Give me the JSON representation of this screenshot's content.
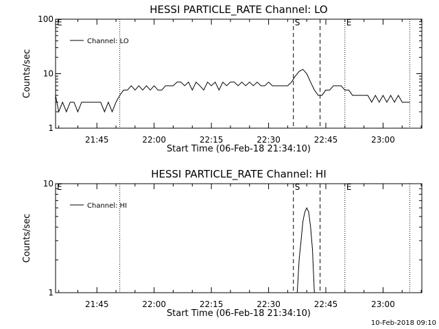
{
  "footer": {
    "timestamp": "10-Feb-2018 09:10"
  },
  "chart_data": [
    {
      "type": "line",
      "title": "HESSI PARTICLE_RATE Channel: LO",
      "xlabel": "Start Time (06-Feb-18 21:34:10)",
      "ylabel": "Counts/sec",
      "yscale": "log",
      "ylim": [
        1,
        100
      ],
      "xlim": [
        "21:34:10",
        "23:10:10"
      ],
      "x_ticks": [
        "21:45",
        "22:00",
        "22:15",
        "22:30",
        "22:45",
        "23:00"
      ],
      "y_ticks": [
        "1",
        "10",
        "100"
      ],
      "grid": false,
      "legend": {
        "position": "top-left",
        "entries": [
          "Channel: LO"
        ]
      },
      "markers": [
        {
          "label": "E",
          "time": "21:34:10",
          "style": "dotted"
        },
        {
          "label": "",
          "time": "21:51:00",
          "style": "dotted"
        },
        {
          "label": "S",
          "time": "22:36:30",
          "style": "dashed"
        },
        {
          "label": "",
          "time": "22:43:30",
          "style": "dashed"
        },
        {
          "label": "E",
          "time": "22:50:00",
          "style": "dotted"
        },
        {
          "label": "",
          "time": "23:07:00",
          "style": "dotted"
        }
      ],
      "series": [
        {
          "name": "Channel: LO",
          "x": [
            "21:34:10",
            "21:35:00",
            "21:36:00",
            "21:37:00",
            "21:38:00",
            "21:39:00",
            "21:40:00",
            "21:41:00",
            "21:42:00",
            "21:43:00",
            "21:44:00",
            "21:45:00",
            "21:46:00",
            "21:47:00",
            "21:48:00",
            "21:49:00",
            "21:50:00",
            "21:51:00",
            "21:52:00",
            "21:53:00",
            "21:54:00",
            "21:55:00",
            "21:56:00",
            "21:57:00",
            "21:58:00",
            "21:59:00",
            "22:00:00",
            "22:01:00",
            "22:02:00",
            "22:03:00",
            "22:04:00",
            "22:05:00",
            "22:06:00",
            "22:07:00",
            "22:08:00",
            "22:09:00",
            "22:10:00",
            "22:11:00",
            "22:12:00",
            "22:13:00",
            "22:14:00",
            "22:15:00",
            "22:16:00",
            "22:17:00",
            "22:18:00",
            "22:19:00",
            "22:20:00",
            "22:21:00",
            "22:22:00",
            "22:23:00",
            "22:24:00",
            "22:25:00",
            "22:26:00",
            "22:27:00",
            "22:28:00",
            "22:29:00",
            "22:30:00",
            "22:31:00",
            "22:32:00",
            "22:33:00",
            "22:34:00",
            "22:35:00",
            "22:36:00",
            "22:37:00",
            "22:38:00",
            "22:39:00",
            "22:40:00",
            "22:41:00",
            "22:42:00",
            "22:43:00",
            "22:44:00",
            "22:45:00",
            "22:46:00",
            "22:47:00",
            "22:48:00",
            "22:49:00",
            "22:50:00",
            "22:51:00",
            "22:52:00",
            "22:53:00",
            "22:54:00",
            "22:55:00",
            "22:56:00",
            "22:57:00",
            "22:58:00",
            "22:59:00",
            "23:00:00",
            "23:01:00",
            "23:02:00",
            "23:03:00",
            "23:04:00",
            "23:05:00",
            "23:06:00",
            "23:07:00"
          ],
          "y": [
            4,
            2,
            3,
            2,
            3,
            3,
            2,
            3,
            3,
            3,
            3,
            3,
            3,
            2,
            3,
            2,
            3,
            4,
            5,
            5,
            6,
            5,
            6,
            5,
            6,
            5,
            6,
            5,
            5,
            6,
            6,
            6,
            7,
            7,
            6,
            7,
            5,
            7,
            6,
            5,
            7,
            6,
            7,
            5,
            7,
            6,
            7,
            7,
            6,
            7,
            6,
            7,
            6,
            7,
            6,
            6,
            7,
            6,
            6,
            6,
            6,
            6,
            7,
            9,
            11,
            12,
            10,
            7,
            5,
            4,
            4,
            5,
            5,
            6,
            6,
            6,
            5,
            5,
            4,
            4,
            4,
            4,
            4,
            3,
            4,
            3,
            4,
            3,
            4,
            3,
            4,
            3,
            3,
            3
          ]
        }
      ]
    },
    {
      "type": "line",
      "title": "HESSI PARTICLE_RATE Channel: HI",
      "xlabel": "Start Time (06-Feb-18 21:34:10)",
      "ylabel": "Counts/sec",
      "yscale": "log",
      "ylim": [
        1,
        10
      ],
      "xlim": [
        "21:34:10",
        "23:10:10"
      ],
      "x_ticks": [
        "21:45",
        "22:00",
        "22:15",
        "22:30",
        "22:45",
        "23:00"
      ],
      "y_ticks": [
        "1",
        "10"
      ],
      "grid": false,
      "legend": {
        "position": "top-left",
        "entries": [
          "Channel: HI"
        ]
      },
      "markers": [
        {
          "label": "E",
          "time": "21:34:10",
          "style": "dotted"
        },
        {
          "label": "",
          "time": "21:51:00",
          "style": "dotted"
        },
        {
          "label": "S",
          "time": "22:36:30",
          "style": "dashed"
        },
        {
          "label": "",
          "time": "22:43:30",
          "style": "dashed"
        },
        {
          "label": "E",
          "time": "22:50:00",
          "style": "dotted"
        },
        {
          "label": "",
          "time": "23:07:00",
          "style": "dotted"
        }
      ],
      "series": [
        {
          "name": "Channel: HI",
          "x": [
            "22:37:30",
            "22:38:00",
            "22:38:30",
            "22:39:00",
            "22:39:30",
            "22:40:00",
            "22:40:30",
            "22:41:00",
            "22:41:30",
            "22:42:00"
          ],
          "y": [
            1,
            2,
            3,
            4.5,
            5.5,
            6,
            5.5,
            4,
            2.5,
            1
          ]
        }
      ]
    }
  ]
}
